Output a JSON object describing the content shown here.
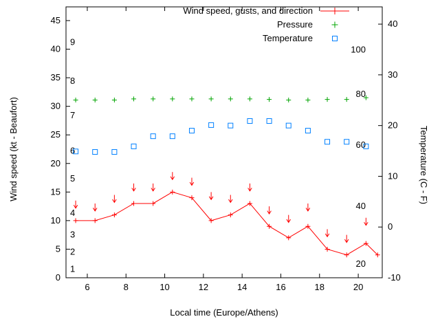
{
  "colors": {
    "wind": "#ff0000",
    "pressure": "#00a400",
    "temperature": "#0080ff",
    "text": "#000000",
    "border": "#000000",
    "background": "#ffffff"
  },
  "legend": {
    "wind_label": "Wind speed, gusts, and direction",
    "pressure_label": "Pressure",
    "temperature_label": "Temperature"
  },
  "axes": {
    "x": {
      "label": "Local time (Europe/Athens)",
      "range": [
        4.9,
        21.24
      ],
      "ticks": [
        6,
        8,
        10,
        12,
        14,
        16,
        18,
        20
      ]
    },
    "y_left": {
      "label": "Wind speed (kt - Beaufort)",
      "range": [
        0,
        47.4
      ],
      "ticks": [
        0,
        5,
        10,
        15,
        20,
        25,
        30,
        35,
        40,
        45
      ]
    },
    "y_right": {
      "label": "Temperature (C - F)",
      "range": [
        -10,
        43.4
      ],
      "ticks": [
        -10,
        0,
        10,
        20,
        30,
        40
      ]
    }
  },
  "chart_data": {
    "type": "line",
    "title": "",
    "grid": false,
    "legend_position": "top-center-inside",
    "x_hours": [
      5.4,
      6.4,
      7.4,
      8.4,
      9.4,
      10.4,
      11.4,
      12.4,
      13.4,
      14.4,
      15.4,
      16.4,
      17.4,
      18.4,
      19.4,
      20.4,
      21.0
    ],
    "series": [
      {
        "name": "Wind speed (kt)",
        "axis": "left",
        "marker": "plus-line",
        "color_key": "wind",
        "values": [
          10,
          10,
          11,
          13,
          13,
          15,
          14,
          10,
          11,
          13,
          9,
          7,
          9,
          5,
          4,
          6,
          4
        ]
      },
      {
        "name": "Gusts (kt, arrows show wind direction)",
        "axis": "left",
        "marker": "down-arrow",
        "color_key": "wind",
        "values": [
          13.5,
          13,
          14.5,
          16.5,
          16.5,
          18.5,
          17.5,
          15,
          14.5,
          16.5,
          12.5,
          11,
          13,
          8.5,
          7.5,
          10.5,
          null
        ]
      },
      {
        "name": "Pressure (plotted level, left-axis units)",
        "axis": "left",
        "marker": "plus",
        "color_key": "pressure",
        "values": [
          31.1,
          31.1,
          31.1,
          31.3,
          31.3,
          31.3,
          31.3,
          31.3,
          31.3,
          31.3,
          31.2,
          31.1,
          31.1,
          31.2,
          31.2,
          31.5,
          null
        ]
      },
      {
        "name": "Temperature (C)",
        "axis": "right",
        "marker": "open-square",
        "color_key": "temperature",
        "values": [
          14.9,
          14.8,
          14.8,
          15.9,
          17.9,
          17.9,
          19.0,
          20.1,
          20.0,
          20.9,
          20.9,
          20.0,
          19.0,
          16.8,
          16.8,
          15.9,
          null
        ]
      }
    ],
    "beaufort_scale_labels": [
      {
        "bft": "1",
        "kt": 1.5
      },
      {
        "bft": "2",
        "kt": 4.5
      },
      {
        "bft": "3",
        "kt": 7.5
      },
      {
        "bft": "4",
        "kt": 11.3
      },
      {
        "bft": "5",
        "kt": 17.3
      },
      {
        "bft": "6",
        "kt": 22.2
      },
      {
        "bft": "7",
        "kt": 28.4
      },
      {
        "bft": "8",
        "kt": 34.4
      },
      {
        "bft": "9",
        "kt": 41.2
      }
    ],
    "right_inner_scale_labels": [
      {
        "text": "100",
        "y_left_units": 39.9
      },
      {
        "text": "80",
        "y_left_units": 32.1
      },
      {
        "text": "60",
        "y_left_units": 23.2
      },
      {
        "text": "40",
        "y_left_units": 12.5
      },
      {
        "text": "20",
        "y_left_units": 2.4
      }
    ]
  }
}
